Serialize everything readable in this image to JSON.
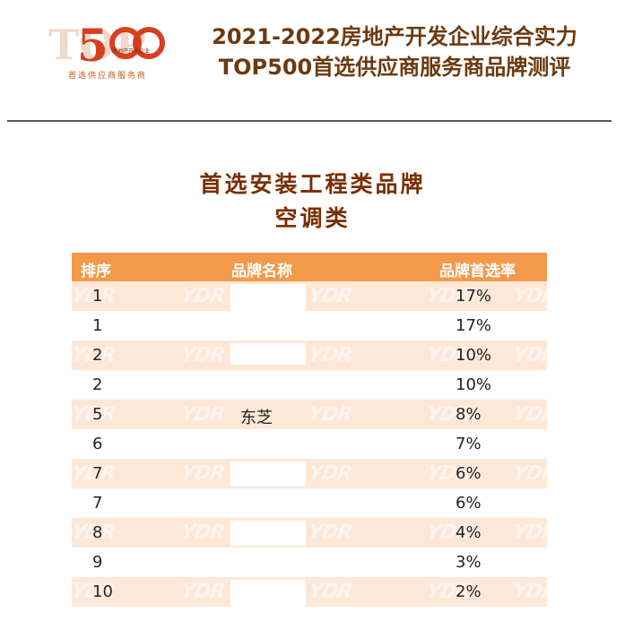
{
  "header": {
    "logo": {
      "big_text": "500",
      "inner_text": "房地产开发企业",
      "sub_text": "首选供应商服务商"
    },
    "title_lines": [
      "2021-2022房地产开发企业综合实力",
      "TOP500首选供应商服务商品牌测评"
    ]
  },
  "section": {
    "title": "首选安装工程类品牌",
    "subtitle": "空调类"
  },
  "table": {
    "columns": [
      "排序",
      "品牌名称",
      "品牌首选率"
    ],
    "watermark": "YDR",
    "rows": [
      {
        "rank": "1",
        "brand": "",
        "rate": "17%"
      },
      {
        "rank": "1",
        "brand": "",
        "rate": "17%"
      },
      {
        "rank": "2",
        "brand": "",
        "rate": "10%"
      },
      {
        "rank": "2",
        "brand": "",
        "rate": "10%"
      },
      {
        "rank": "5",
        "brand": "东芝",
        "rate": "8%"
      },
      {
        "rank": "6",
        "brand": "",
        "rate": "7%"
      },
      {
        "rank": "7",
        "brand": "",
        "rate": "6%"
      },
      {
        "rank": "7",
        "brand": "",
        "rate": "6%"
      },
      {
        "rank": "8",
        "brand": "",
        "rate": "4%"
      },
      {
        "rank": "9",
        "brand": "",
        "rate": "3%"
      },
      {
        "rank": "10",
        "brand": "",
        "rate": "2%"
      }
    ]
  },
  "colors": {
    "header_text": "#6b3a10",
    "section_title": "#7a2e00",
    "table_header_bg": "#f39a4a",
    "row_shade": "#fde8d8",
    "logo_accent": "#c95a1a"
  }
}
